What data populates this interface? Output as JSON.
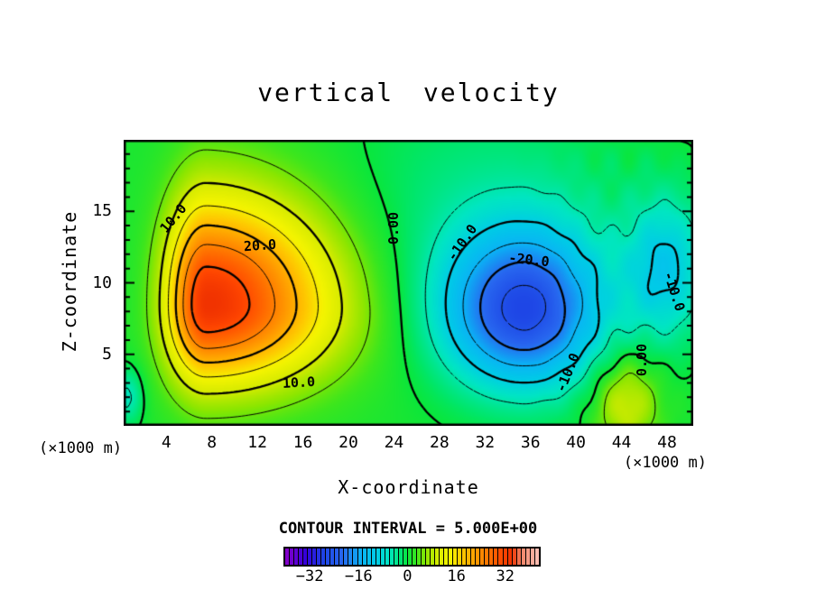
{
  "title": "vertical velocity",
  "axes": {
    "x_label": "X-coordinate",
    "y_label": "Z-coordinate",
    "x_unit_left": "(×1000 m)",
    "x_unit_right": "(×1000 m)",
    "x_ticks": [
      4,
      8,
      12,
      16,
      20,
      24,
      28,
      32,
      36,
      40,
      44,
      48
    ],
    "x_minor_step": 2,
    "y_ticks": [
      5,
      10,
      15
    ],
    "y_minor_step": 1,
    "x_range": [
      0.25,
      50.3
    ],
    "y_range": [
      0,
      20
    ]
  },
  "footer": {
    "contour_interval_text": "CONTOUR INTERVAL = 5.000E+00"
  },
  "colorbar": {
    "labels": [
      -32,
      -16,
      0,
      16,
      32
    ],
    "range": [
      -40,
      43
    ],
    "bands": 56
  },
  "chart_data": {
    "type": "contour",
    "title": "vertical velocity",
    "xlabel": "X-coordinate (×1000 m)",
    "ylabel": "Z-coordinate (×1000 m)",
    "xlim": [
      0.25,
      50.3
    ],
    "ylim": [
      0,
      20
    ],
    "grid": false,
    "contour_interval": 5,
    "levels": [
      -30,
      -25,
      -20,
      -15,
      -10,
      -5,
      0,
      5,
      10,
      15,
      20,
      25,
      30
    ],
    "line_style": {
      "positive": "solid",
      "negative": "dashed",
      "thick_every": 10,
      "zero": "thick-solid"
    },
    "estimated_max": 34,
    "estimated_max_at": {
      "x": 7.5,
      "z": 8.5
    },
    "estimated_min": -29,
    "estimated_min_at": {
      "x": 35.5,
      "z": 8
    },
    "background": 1.0,
    "features": [
      {
        "name": "updraft-core",
        "amplitude": 33,
        "cx": 7.5,
        "cz": 8.5,
        "sxl": 3.6,
        "sxr": 11.0,
        "szb": 5.5,
        "szt": 7.5
      },
      {
        "name": "downdraft-core",
        "amplitude": -26,
        "cx": 35.5,
        "cz": 8.0,
        "sxl": 7.0,
        "sxr": 6.5,
        "szb": 5.2,
        "szt": 5.6
      },
      {
        "name": "right-edge-downdraft",
        "amplitude": -11,
        "cx": 48.0,
        "cz": 11.0,
        "sxl": 3.5,
        "sxr": 3.5,
        "szb": 5.0,
        "szt": 5.0
      },
      {
        "name": "right-edge-updraft",
        "amplitude": 9.5,
        "cx": 44.5,
        "cz": 1.5,
        "sxl": 2.8,
        "sxr": 2.8,
        "szb": 3.2,
        "szt": 3.2
      },
      {
        "name": "broad-upper-negative",
        "amplitude": -4,
        "cx": 32.0,
        "cz": 15.0,
        "sxl": 14.0,
        "sxr": 14.0,
        "szb": 9.0,
        "szt": 9.0
      },
      {
        "name": "corner-negative",
        "amplitude": -7,
        "cx": 0.5,
        "cz": 2.0,
        "sxl": 1.3,
        "sxr": 1.3,
        "szb": 2.0,
        "szt": 2.0
      }
    ],
    "ripples": [
      {
        "amp": 0.9,
        "kx": 2.0,
        "kz": 1.3,
        "phase": 1.0,
        "cx": 44,
        "sx": 5.5
      }
    ],
    "contour_labels": [
      {
        "text": "10.0",
        "x": 4.6,
        "z": 14.5,
        "rot": -50
      },
      {
        "text": "20.0",
        "x": 12.2,
        "z": 12.6,
        "rot": -4
      },
      {
        "text": "0.00",
        "x": 24.0,
        "z": 13.8,
        "rot": -90
      },
      {
        "text": "-10.0",
        "x": 30.0,
        "z": 12.8,
        "rot": -55
      },
      {
        "text": "-20.0",
        "x": 35.9,
        "z": 11.6,
        "rot": 6
      },
      {
        "text": "-10.0",
        "x": 39.3,
        "z": 3.7,
        "rot": -68
      },
      {
        "text": "-10.0",
        "x": 48.6,
        "z": 9.4,
        "rot": 72
      },
      {
        "text": "0.00",
        "x": 45.8,
        "z": 4.6,
        "rot": -90
      },
      {
        "text": "10.0",
        "x": 15.6,
        "z": 3.0,
        "rot": -3
      }
    ],
    "colormap": [
      [
        -40,
        "#8C00C8"
      ],
      [
        -33,
        "#3200DC"
      ],
      [
        -27,
        "#1E46E6"
      ],
      [
        -21,
        "#2868F0"
      ],
      [
        -15,
        "#0AB4F5"
      ],
      [
        -10,
        "#00CDE6"
      ],
      [
        -6,
        "#00E6C3"
      ],
      [
        -2,
        "#00E66E"
      ],
      [
        0,
        "#0AE63C"
      ],
      [
        3,
        "#3CE61E"
      ],
      [
        6,
        "#8CE600"
      ],
      [
        10,
        "#D7EB00"
      ],
      [
        14,
        "#F5F500"
      ],
      [
        18,
        "#FFC800"
      ],
      [
        22,
        "#FFA000"
      ],
      [
        26,
        "#FF7800"
      ],
      [
        31,
        "#FF4600"
      ],
      [
        34,
        "#F03200"
      ],
      [
        37,
        "#F08264"
      ],
      [
        43,
        "#FFC3B9"
      ]
    ],
    "line_color": "#000000",
    "page_background": "#FFFFFF"
  }
}
